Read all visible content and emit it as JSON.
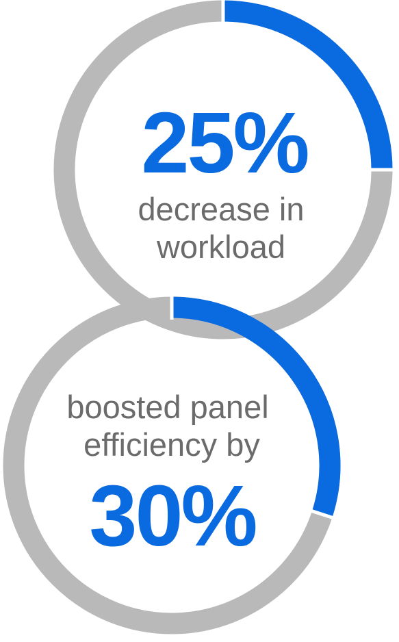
{
  "colors": {
    "accent": "#0a6ae0",
    "track": "#b9b9b9",
    "caption": "#6b6b6b"
  },
  "stats": [
    {
      "value_label": "25%",
      "caption_lines": [
        "decrease in",
        "workload"
      ]
    },
    {
      "value_label": "30%",
      "caption_lines": [
        "boosted panel",
        "efficiency by"
      ]
    }
  ],
  "chart_data": [
    {
      "type": "pie",
      "title": "",
      "categories": [
        "decrease in workload",
        "remainder"
      ],
      "values": [
        25,
        75
      ],
      "unit": "%"
    },
    {
      "type": "pie",
      "title": "",
      "categories": [
        "boosted panel efficiency",
        "remainder"
      ],
      "values": [
        30,
        70
      ],
      "unit": "%"
    }
  ]
}
